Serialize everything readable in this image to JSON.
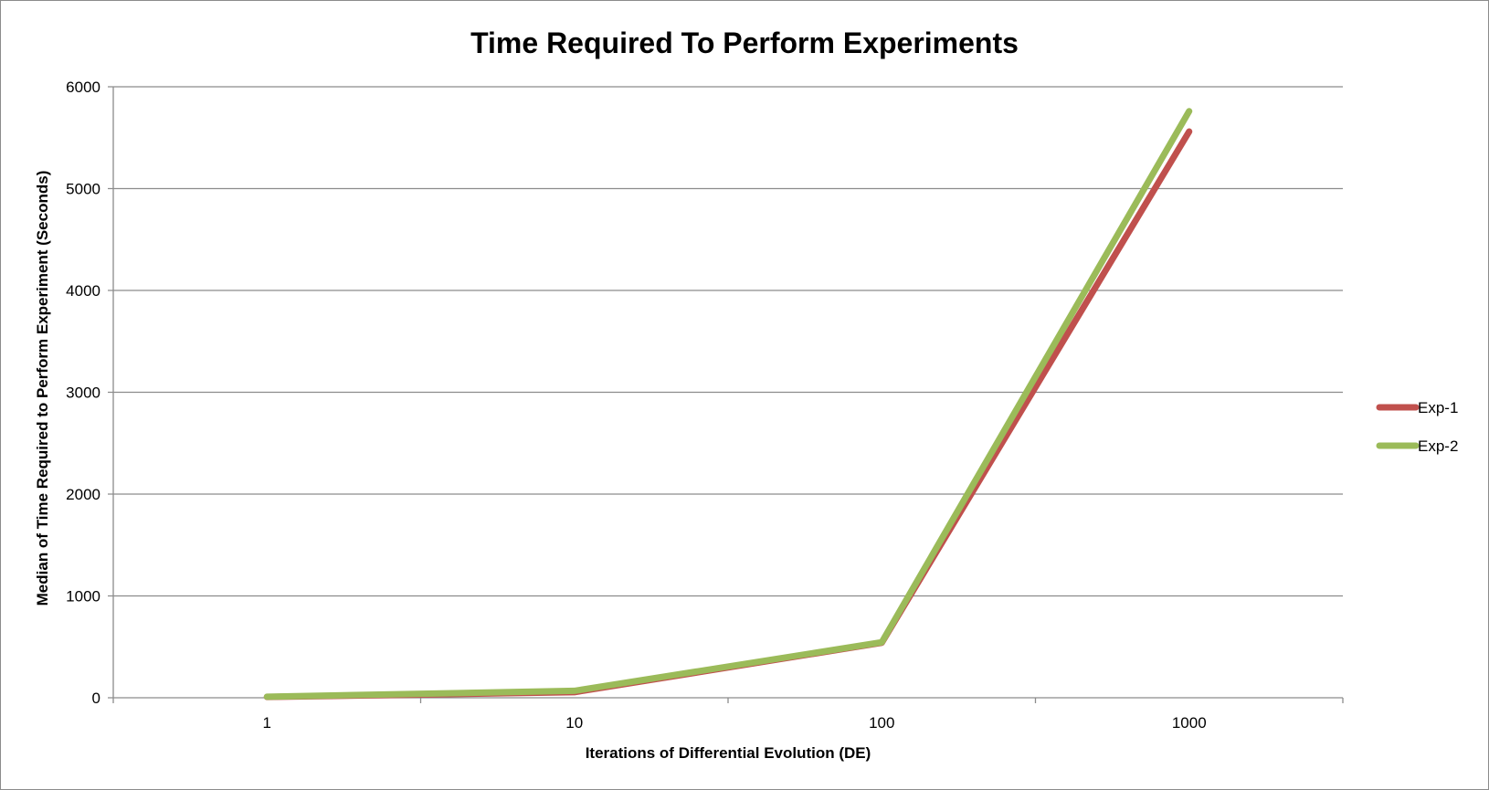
{
  "chart_data": {
    "type": "line",
    "title": "Time Required To Perform Experiments",
    "xlabel": "Iterations of Differential Evolution (DE)",
    "ylabel": "Median of Time Required to Perform Experiment (Seconds)",
    "categories": [
      "1",
      "10",
      "100",
      "1000"
    ],
    "ylim": [
      0,
      6000
    ],
    "yticks": [
      0,
      1000,
      2000,
      3000,
      4000,
      5000,
      6000
    ],
    "grid": true,
    "legend_position": "right",
    "series": [
      {
        "name": "Exp-1",
        "color": "#c0504d",
        "values": [
          8,
          55,
          540,
          5560
        ]
      },
      {
        "name": "Exp-2",
        "color": "#9bbb59",
        "values": [
          10,
          68,
          545,
          5760
        ]
      }
    ]
  }
}
